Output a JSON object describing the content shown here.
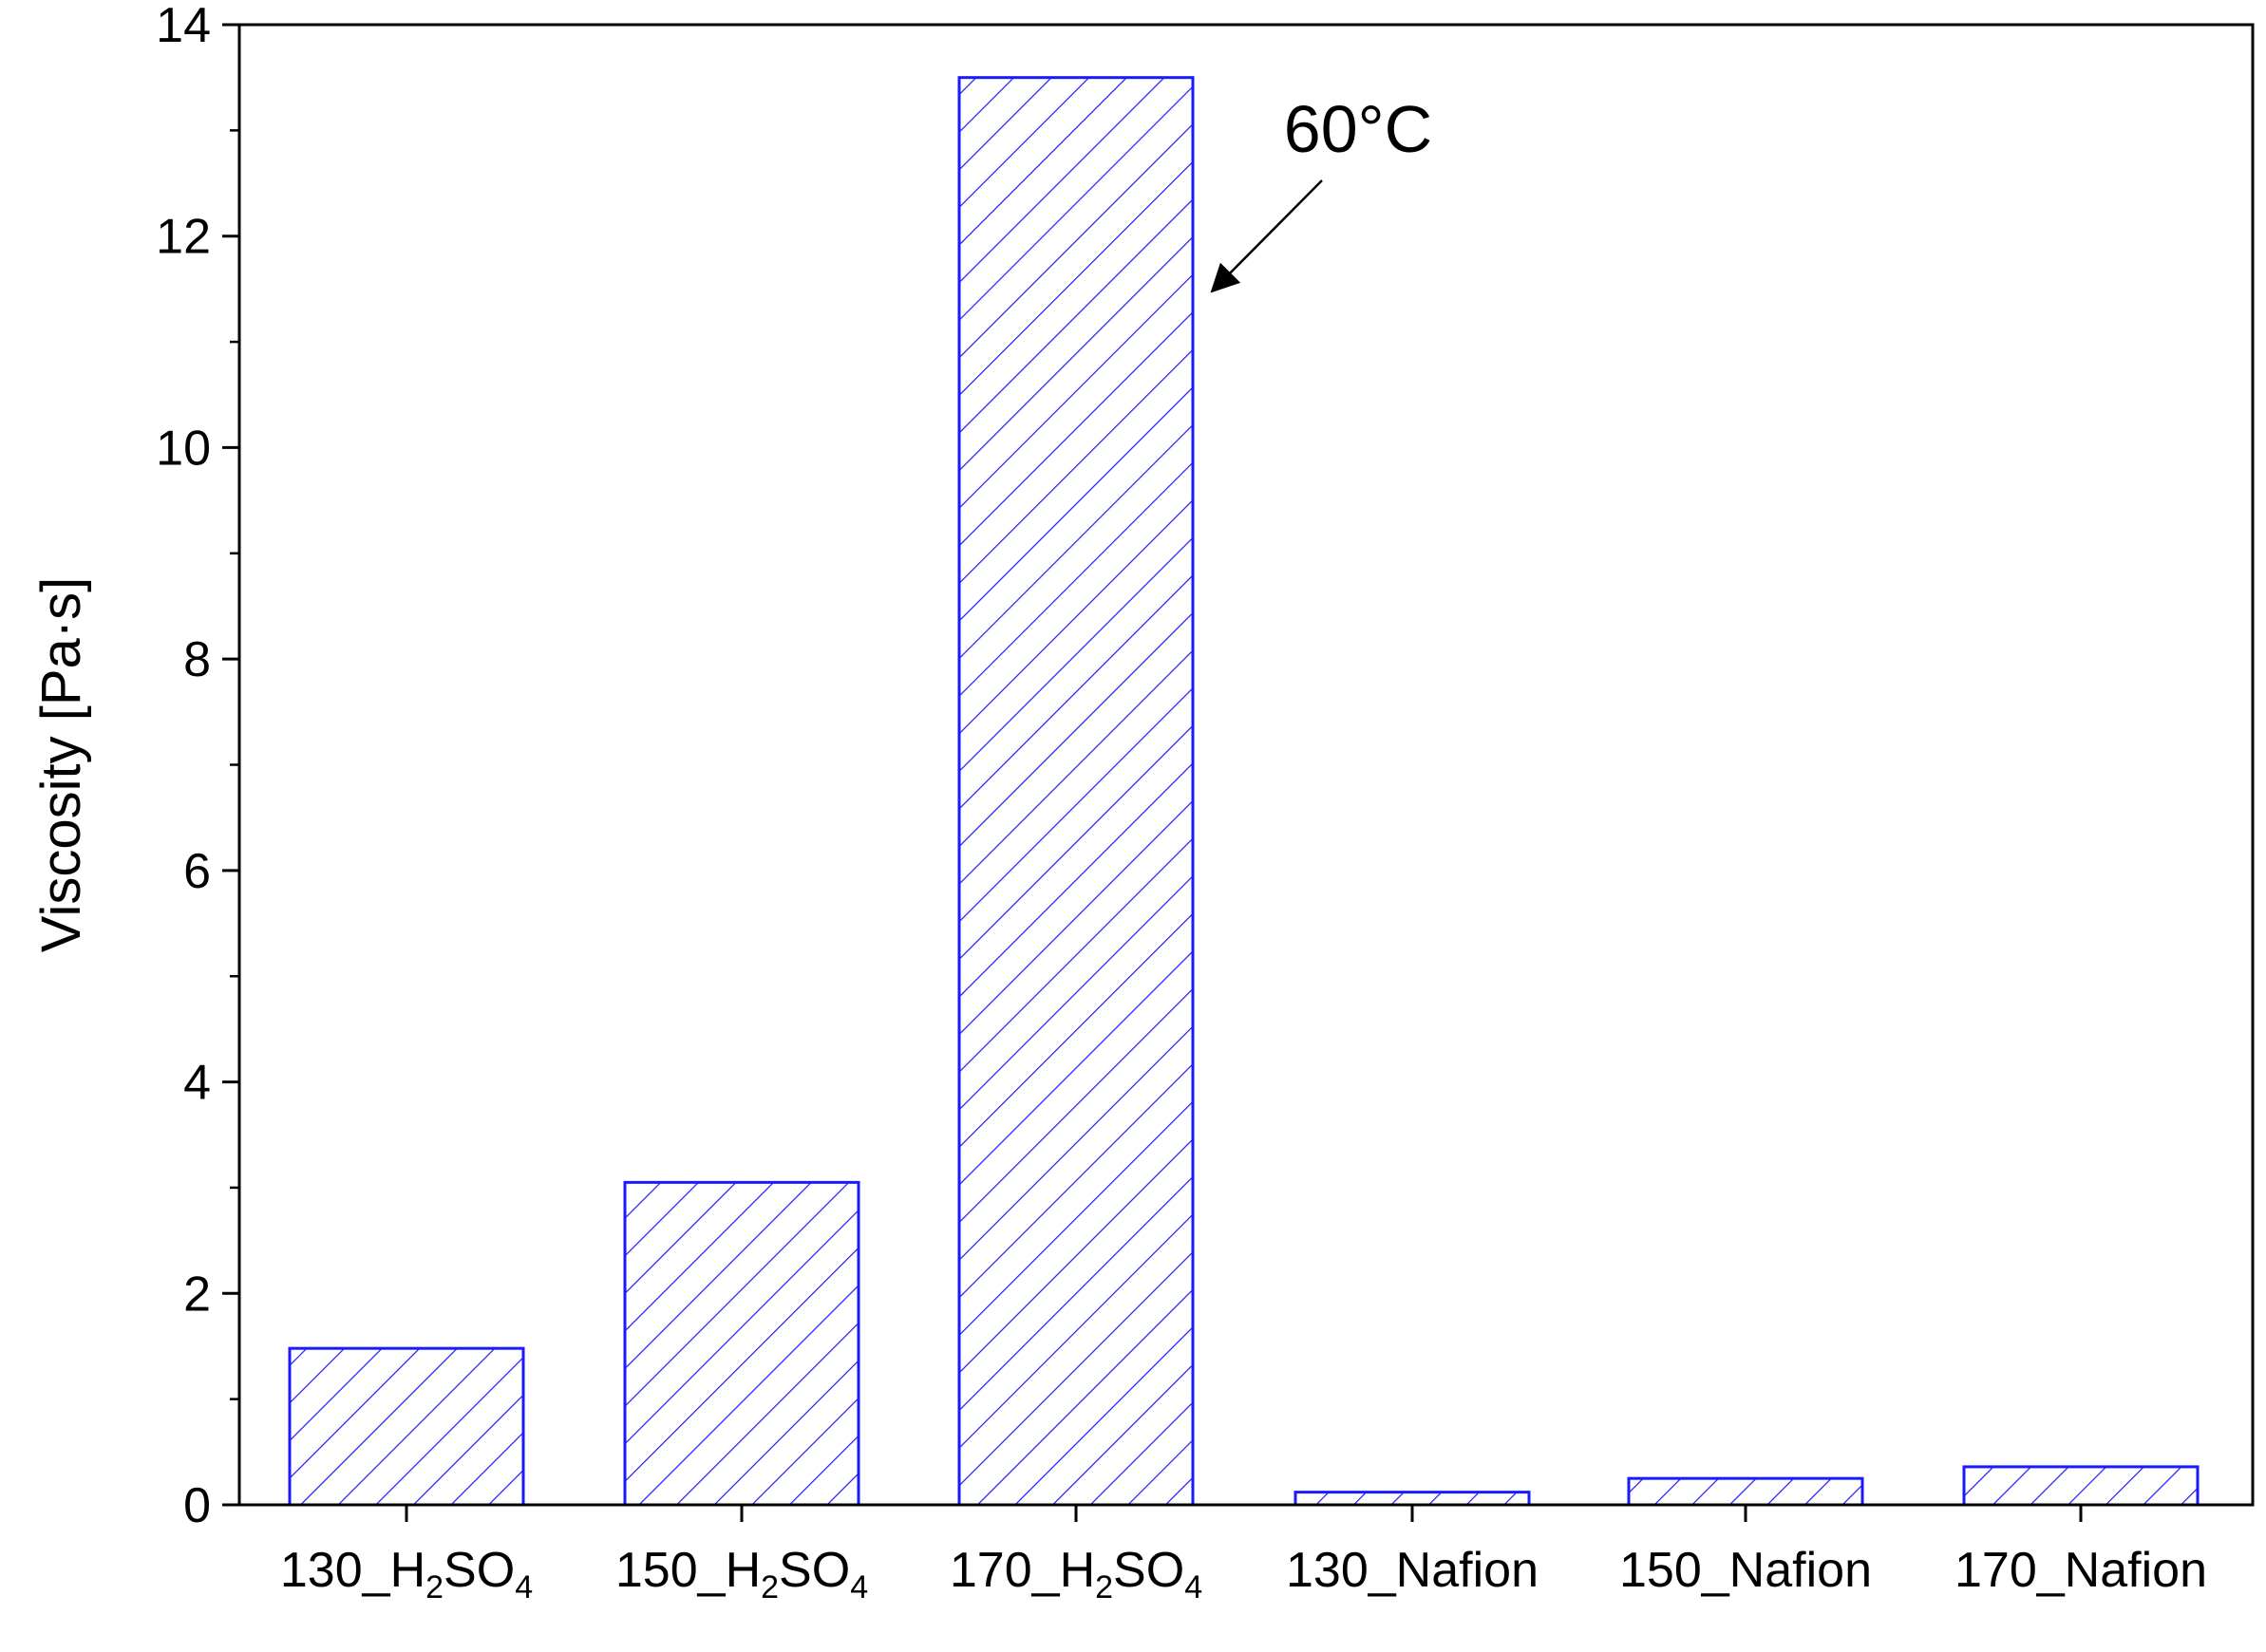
{
  "chart_data": {
    "type": "bar",
    "title": "",
    "xlabel": "",
    "ylabel": "Viscosity [Pa·s]",
    "ylim": [
      0,
      14
    ],
    "yticks": [
      "0",
      "2",
      "4",
      "6",
      "8",
      "10",
      "12",
      "14"
    ],
    "grid": false,
    "legend": "none",
    "bar_style": "hatched",
    "colors": {
      "bar": "#1a1aff",
      "axis": "#000000"
    },
    "categories": [
      {
        "main": "130_H",
        "sub1": "2",
        "mid": "SO",
        "sub2": "4"
      },
      {
        "main": "150_H",
        "sub1": "2",
        "mid": "SO",
        "sub2": "4"
      },
      {
        "main": "170_H",
        "sub1": "2",
        "mid": "SO",
        "sub2": "4"
      },
      {
        "main": "130_Nafion",
        "sub1": "",
        "mid": "",
        "sub2": ""
      },
      {
        "main": "150_Nafion",
        "sub1": "",
        "mid": "",
        "sub2": ""
      },
      {
        "main": "170_Nafion",
        "sub1": "",
        "mid": "",
        "sub2": ""
      }
    ],
    "values": [
      1.48,
      3.05,
      13.5,
      0.12,
      0.25,
      0.36
    ],
    "annotations": [
      {
        "text": "60°C",
        "points_to_category": 2
      }
    ]
  }
}
